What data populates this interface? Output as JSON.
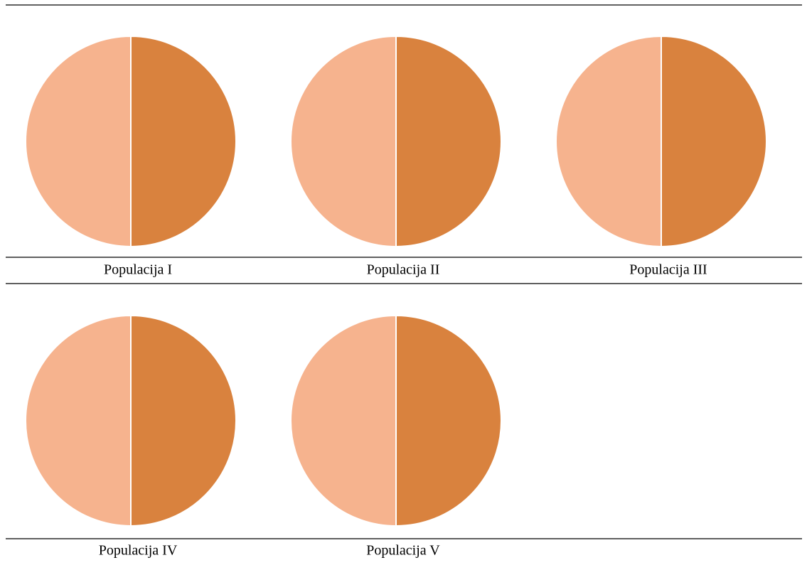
{
  "chart_data": [
    {
      "type": "pie",
      "title": "Populacija I",
      "values": [
        50,
        50
      ],
      "colors": [
        "#d9823e",
        "#f6b38e"
      ]
    },
    {
      "type": "pie",
      "title": "Populacija II",
      "values": [
        50,
        50
      ],
      "colors": [
        "#d9823e",
        "#f6b38e"
      ]
    },
    {
      "type": "pie",
      "title": "Populacija III",
      "values": [
        50,
        50
      ],
      "colors": [
        "#d9823e",
        "#f6b38e"
      ]
    },
    {
      "type": "pie",
      "title": "Populacija IV",
      "values": [
        50,
        50
      ],
      "colors": [
        "#d9823e",
        "#f6b38e"
      ]
    },
    {
      "type": "pie",
      "title": "Populacija V",
      "values": [
        50,
        50
      ],
      "colors": [
        "#d9823e",
        "#f6b38e"
      ]
    }
  ]
}
